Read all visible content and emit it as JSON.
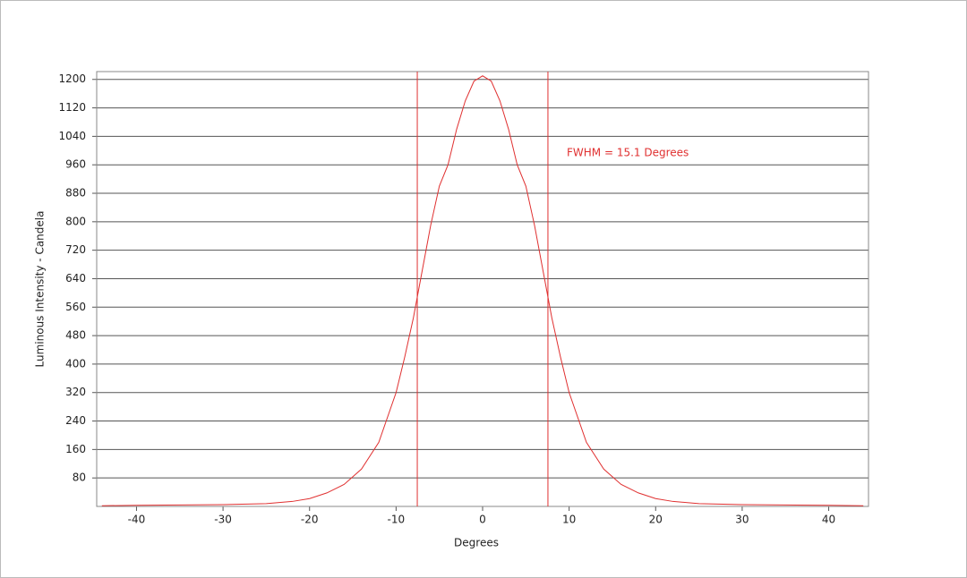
{
  "chart_data": {
    "type": "line",
    "xlabel": "Degrees",
    "ylabel": "Luminous Intensity - Candela",
    "annotation": "FWHM = 15.1 Degrees",
    "x": [
      -44,
      -40,
      -35,
      -30,
      -25,
      -22,
      -20,
      -18,
      -16,
      -14,
      -12,
      -10,
      -9,
      -8,
      -7,
      -6,
      -5,
      -4,
      -3,
      -2,
      -1,
      0,
      1,
      2,
      3,
      4,
      5,
      6,
      7,
      8,
      9,
      10,
      12,
      14,
      16,
      18,
      20,
      22,
      25,
      30,
      35,
      40,
      44
    ],
    "series": [
      {
        "color": "#e03030",
        "values": [
          2,
          3,
          4,
          5,
          8,
          14,
          22,
          38,
          62,
          105,
          180,
          320,
          420,
          530,
          660,
          790,
          900,
          960,
          1060,
          1140,
          1195,
          1210,
          1195,
          1140,
          1060,
          960,
          900,
          790,
          660,
          530,
          420,
          320,
          180,
          105,
          62,
          38,
          22,
          14,
          8,
          5,
          4,
          3,
          2
        ]
      }
    ],
    "vlines": [
      -7.55,
      7.55
    ],
    "xlim": [
      -44.6,
      44.6
    ],
    "ylim": [
      0,
      1222
    ],
    "xticks": [
      -40,
      -30,
      -20,
      -10,
      0,
      10,
      20,
      30,
      40
    ],
    "yticks": [
      80,
      160,
      240,
      320,
      400,
      480,
      560,
      640,
      720,
      800,
      880,
      960,
      1040,
      1120,
      1200
    ],
    "grid": true
  }
}
